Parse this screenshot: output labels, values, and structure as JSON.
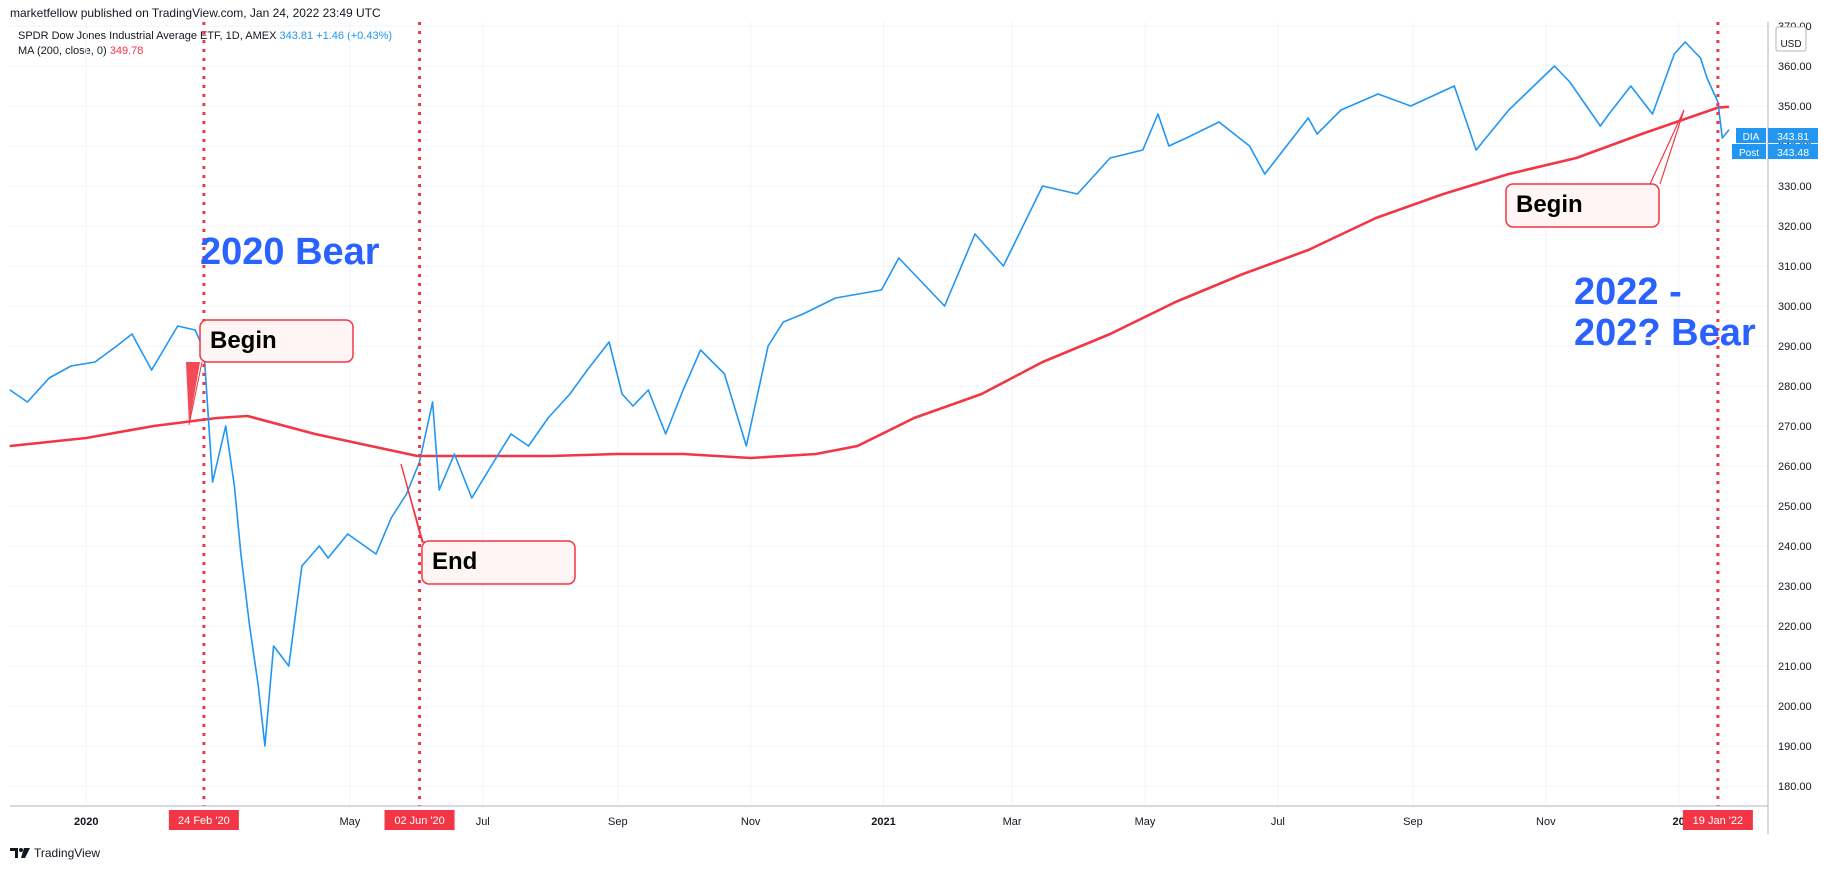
{
  "header": {
    "publisher": "marketfellow published on TradingView.com, Jan 24, 2022 23:49 UTC"
  },
  "legend": {
    "symbol_line": "SPDR Dow Jones Industrial Average ETF, 1D, AMEX",
    "last": "343.81",
    "change": "+1.46 (+0.43%)",
    "ma_line": "MA (200, close, 0)",
    "ma_value": "349.78"
  },
  "price_labels": {
    "currency": "USD",
    "dia_tag": "DIA",
    "dia_value": "343.81",
    "post_tag": "Post",
    "post_value": "343.48"
  },
  "annotations": {
    "bear_2020": "2020 Bear",
    "bear_2022_line1": "2022 -",
    "bear_2022_line2": "202? Bear",
    "begin_2020": "Begin",
    "end_2020": "End",
    "begin_2022": "Begin"
  },
  "footer": {
    "brand": "TradingView"
  },
  "colors": {
    "price": "#2196f3",
    "ma": "#f23645",
    "annotation_text": "#2962ff",
    "marker": "#f23645"
  },
  "chart_data": {
    "type": "line",
    "title": "SPDR Dow Jones Industrial Average ETF, 1D, AMEX",
    "xlabel": "",
    "ylabel": "USD",
    "ylim": [
      175,
      371
    ],
    "yticks": [
      180,
      190,
      200,
      210,
      220,
      230,
      240,
      250,
      260,
      270,
      280,
      290,
      300,
      310,
      320,
      330,
      340,
      350,
      360,
      370
    ],
    "ytick_labels": [
      "180.00",
      "190.00",
      "200.00",
      "210.00",
      "220.00",
      "230.00",
      "240.00",
      "250.00",
      "260.00",
      "270.00",
      "280.00",
      "290.00",
      "300.00",
      "310.00",
      "320.00",
      "330.00",
      "340.00",
      "350.00",
      "360.00",
      "370.00"
    ],
    "xlim": [
      "2019-11-27",
      "2022-02-11"
    ],
    "xticks": [
      {
        "date": "2020-01-01",
        "label": "2020",
        "bold": true
      },
      {
        "date": "2020-05-01",
        "label": "May",
        "bold": false
      },
      {
        "date": "2020-07-01",
        "label": "Jul",
        "bold": false
      },
      {
        "date": "2020-09-01",
        "label": "Sep",
        "bold": false
      },
      {
        "date": "2020-11-01",
        "label": "Nov",
        "bold": false
      },
      {
        "date": "2021-01-01",
        "label": "2021",
        "bold": true
      },
      {
        "date": "2021-03-01",
        "label": "Mar",
        "bold": false
      },
      {
        "date": "2021-05-01",
        "label": "May",
        "bold": false
      },
      {
        "date": "2021-07-01",
        "label": "Jul",
        "bold": false
      },
      {
        "date": "2021-09-01",
        "label": "Sep",
        "bold": false
      },
      {
        "date": "2021-11-01",
        "label": "Nov",
        "bold": false
      },
      {
        "date": "2022-01-01",
        "label": "20",
        "bold": true
      }
    ],
    "markers": [
      {
        "date": "2020-02-24",
        "label": "24 Feb '20"
      },
      {
        "date": "2020-06-02",
        "label": "02 Jun '20"
      },
      {
        "date": "2022-01-19",
        "label": "19 Jan '22"
      }
    ],
    "grid": true,
    "series": [
      {
        "name": "DIA",
        "x": [
          "2019-11-27",
          "2019-12-05",
          "2019-12-15",
          "2019-12-25",
          "2020-01-05",
          "2020-01-15",
          "2020-01-22",
          "2020-01-31",
          "2020-02-12",
          "2020-02-20",
          "2020-02-24",
          "2020-02-28",
          "2020-03-05",
          "2020-03-09",
          "2020-03-12",
          "2020-03-16",
          "2020-03-20",
          "2020-03-23",
          "2020-03-27",
          "2020-04-03",
          "2020-04-09",
          "2020-04-17",
          "2020-04-21",
          "2020-04-30",
          "2020-05-13",
          "2020-05-20",
          "2020-05-27",
          "2020-06-02",
          "2020-06-08",
          "2020-06-11",
          "2020-06-18",
          "2020-06-26",
          "2020-07-06",
          "2020-07-14",
          "2020-07-22",
          "2020-07-31",
          "2020-08-10",
          "2020-08-18",
          "2020-08-28",
          "2020-09-03",
          "2020-09-08",
          "2020-09-15",
          "2020-09-23",
          "2020-10-01",
          "2020-10-09",
          "2020-10-20",
          "2020-10-30",
          "2020-11-09",
          "2020-11-16",
          "2020-11-25",
          "2020-12-10",
          "2020-12-31",
          "2021-01-08",
          "2021-01-29",
          "2021-02-12",
          "2021-02-25",
          "2021-03-15",
          "2021-03-31",
          "2021-04-15",
          "2021-04-30",
          "2021-05-07",
          "2021-05-12",
          "2021-05-20",
          "2021-06-04",
          "2021-06-18",
          "2021-06-25",
          "2021-07-15",
          "2021-07-19",
          "2021-07-30",
          "2021-08-16",
          "2021-08-31",
          "2021-09-20",
          "2021-09-30",
          "2021-10-15",
          "2021-11-05",
          "2021-11-12",
          "2021-11-26",
          "2021-11-30",
          "2021-12-10",
          "2021-12-20",
          "2021-12-30",
          "2022-01-04",
          "2022-01-11",
          "2022-01-14",
          "2022-01-19",
          "2022-01-21",
          "2022-01-24"
        ],
        "y": [
          279,
          276,
          282,
          285,
          286,
          290,
          293,
          284,
          295,
          294,
          289,
          256,
          270,
          255,
          238,
          220,
          205,
          190,
          215,
          210,
          235,
          240,
          237,
          243,
          238,
          247,
          253,
          261,
          276,
          254,
          263,
          252,
          261,
          268,
          265,
          272,
          278,
          284,
          291,
          278,
          275,
          279,
          268,
          279,
          289,
          283,
          265,
          290,
          296,
          298,
          302,
          304,
          312,
          300,
          318,
          310,
          330,
          328,
          337,
          339,
          348,
          340,
          342,
          346,
          340,
          333,
          347,
          343,
          349,
          353,
          350,
          355,
          339,
          349,
          360,
          356,
          345,
          348,
          355,
          348,
          363,
          366,
          362,
          357,
          351,
          342,
          344
        ]
      },
      {
        "name": "MA (200, close, 0)",
        "x": [
          "2019-11-27",
          "2020-01-01",
          "2020-02-01",
          "2020-03-01",
          "2020-03-15",
          "2020-04-15",
          "2020-06-01",
          "2020-07-01",
          "2020-08-01",
          "2020-09-01",
          "2020-10-01",
          "2020-11-01",
          "2020-12-01",
          "2020-12-20",
          "2021-01-15",
          "2021-02-15",
          "2021-03-15",
          "2021-04-15",
          "2021-05-15",
          "2021-06-15",
          "2021-07-15",
          "2021-08-15",
          "2021-09-15",
          "2021-10-15",
          "2021-11-15",
          "2021-12-15",
          "2022-01-19",
          "2022-01-24"
        ],
        "y": [
          265,
          267,
          270,
          272,
          272.5,
          268,
          262.5,
          262.5,
          262.5,
          263,
          263,
          262,
          263,
          265,
          272,
          278,
          286,
          293,
          301,
          308,
          314,
          322,
          328,
          333,
          337,
          343,
          349.6,
          349.8
        ]
      }
    ]
  }
}
